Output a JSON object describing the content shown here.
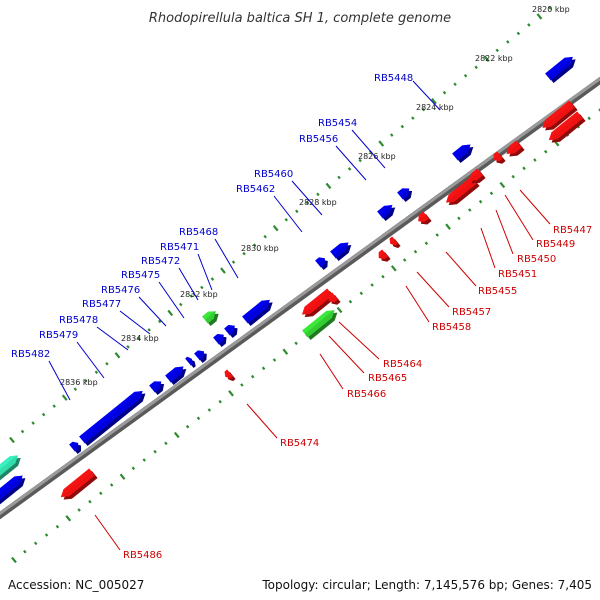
{
  "title": "Rhodopirellula baltica SH 1, complete genome",
  "footer": {
    "accession": "Accession: NC_005027",
    "topology": "Topology: circular; Length: 7,145,576 bp; Genes: 7,405"
  },
  "colors": {
    "forward": "#0000dd",
    "reverse": "#ee1111",
    "rna": "#33cc33",
    "other": "#33ddaa",
    "backbone": "#808080",
    "ticks": "#2e8b2e"
  },
  "tick_labels": [
    "2820 kbp",
    "2822 kbp",
    "2824 kbp",
    "2826 kbp",
    "2828 kbp",
    "2830 kbp",
    "2832 kbp",
    "2834 kbp",
    "2836 kbp"
  ],
  "forward_labels": [
    "RB5448",
    "RB5454",
    "RB5456",
    "RB5460",
    "RB5462",
    "RB5468",
    "RB5471",
    "RB5472",
    "RB5475",
    "RB5476",
    "RB5477",
    "RB5478",
    "RB5479",
    "RB5482"
  ],
  "reverse_labels": [
    "RB5447",
    "RB5449",
    "RB5450",
    "RB5451",
    "RB5455",
    "RB5457",
    "RB5458",
    "RB5464",
    "RB5465",
    "RB5466",
    "RB5474",
    "RB5486"
  ]
}
